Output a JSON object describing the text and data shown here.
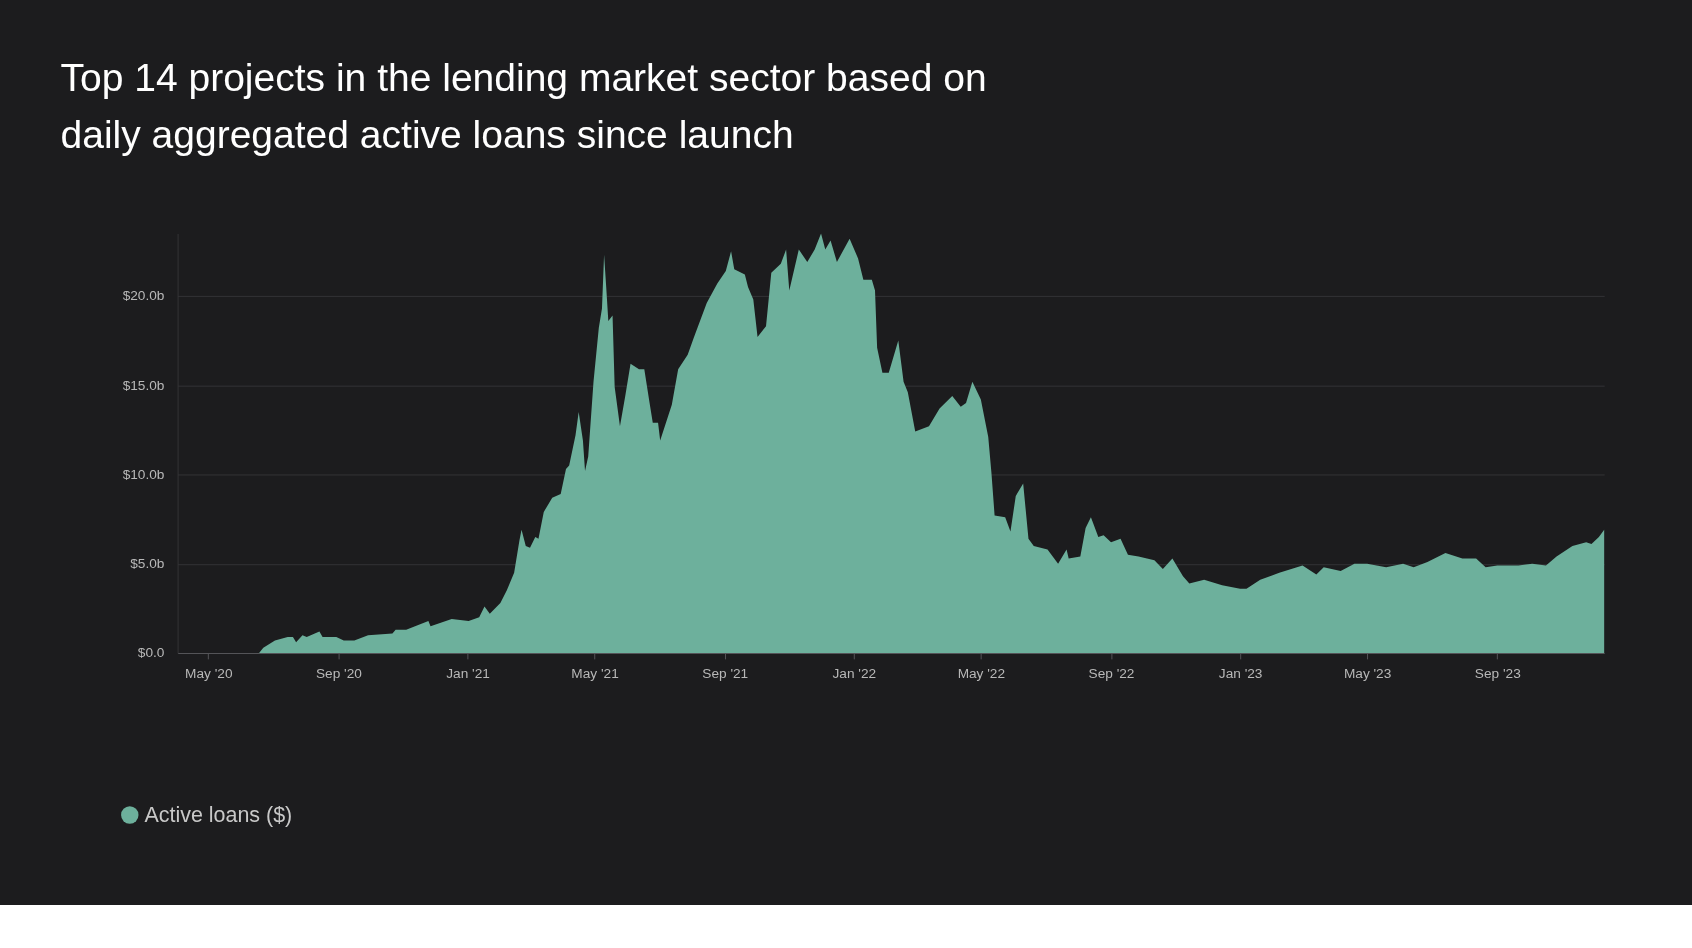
{
  "chart_data": {
    "type": "area",
    "title": "Top 14 projects in the lending market sector based on daily aggregated active loans since launch",
    "x": [
      "2020-06-18",
      "2020-06-22",
      "2020-07-03",
      "2020-07-15",
      "2020-07-20",
      "2020-07-23",
      "2020-07-29",
      "2020-08-02",
      "2020-08-14",
      "2020-08-17",
      "2020-08-30",
      "2020-09-06",
      "2020-09-16",
      "2020-09-29",
      "2020-10-22",
      "2020-10-25",
      "2020-11-04",
      "2020-11-25",
      "2020-11-27",
      "2020-12-17",
      "2021-01-02",
      "2021-01-12",
      "2021-01-17",
      "2021-01-22",
      "2021-02-01",
      "2021-02-07",
      "2021-02-14",
      "2021-02-19",
      "2021-02-21",
      "2021-02-25",
      "2021-03-01",
      "2021-03-06",
      "2021-03-09",
      "2021-03-14",
      "2021-03-22",
      "2021-03-30",
      "2021-04-04",
      "2021-04-07",
      "2021-04-13",
      "2021-04-16",
      "2021-04-20",
      "2021-04-22",
      "2021-04-25",
      "2021-04-30",
      "2021-05-05",
      "2021-05-08",
      "2021-05-10",
      "2021-05-12",
      "2021-05-14",
      "2021-05-18",
      "2021-05-20",
      "2021-05-25",
      "2021-05-30",
      "2021-06-04",
      "2021-06-12",
      "2021-06-17",
      "2021-06-22",
      "2021-06-25",
      "2021-06-30",
      "2021-07-02",
      "2021-07-13",
      "2021-07-19",
      "2021-07-28",
      "2021-08-03",
      "2021-08-15",
      "2021-08-25",
      "2021-09-02",
      "2021-09-07",
      "2021-09-10",
      "2021-09-20",
      "2021-09-23",
      "2021-09-28",
      "2021-10-02",
      "2021-10-10",
      "2021-10-15",
      "2021-10-24",
      "2021-10-29",
      "2021-11-01",
      "2021-11-10",
      "2021-11-18",
      "2021-11-25",
      "2021-12-01",
      "2021-12-05",
      "2021-12-10",
      "2021-12-16",
      "2021-12-28",
      "2022-01-05",
      "2022-01-10",
      "2022-01-18",
      "2022-01-21",
      "2022-01-23",
      "2022-01-28",
      "2022-02-03",
      "2022-02-12",
      "2022-02-17",
      "2022-02-21",
      "2022-02-28",
      "2022-03-13",
      "2022-03-23",
      "2022-04-04",
      "2022-04-12",
      "2022-04-17",
      "2022-04-23",
      "2022-05-01",
      "2022-05-08",
      "2022-05-11",
      "2022-05-14",
      "2022-05-24",
      "2022-05-29",
      "2022-06-03",
      "2022-06-10",
      "2022-06-15",
      "2022-06-20",
      "2022-07-03",
      "2022-07-13",
      "2022-07-21",
      "2022-07-23",
      "2022-08-03",
      "2022-08-08",
      "2022-08-13",
      "2022-08-20",
      "2022-08-25",
      "2022-09-01",
      "2022-09-10",
      "2022-09-17",
      "2022-09-27",
      "2022-10-12",
      "2022-10-20",
      "2022-10-29",
      "2022-11-08",
      "2022-11-14",
      "2022-11-28",
      "2022-12-15",
      "2023-01-01",
      "2023-01-07",
      "2023-01-20",
      "2023-02-07",
      "2023-03-01",
      "2023-03-14",
      "2023-03-21",
      "2023-04-06",
      "2023-04-19",
      "2023-05-01",
      "2023-05-19",
      "2023-06-04",
      "2023-06-14",
      "2023-06-27",
      "2023-07-14",
      "2023-07-30",
      "2023-08-12",
      "2023-08-21",
      "2023-09-01",
      "2023-09-21",
      "2023-10-04",
      "2023-10-17",
      "2023-10-27",
      "2023-11-06",
      "2023-11-11",
      "2023-11-24",
      "2023-11-29",
      "2023-12-06",
      "2023-12-11"
    ],
    "series": [
      {
        "name": "Active loans ($)",
        "color": "#6db09c",
        "values": [
          0,
          0.3,
          0.7,
          0.9,
          0.9,
          0.6,
          1.0,
          0.9,
          1.2,
          0.9,
          0.9,
          0.7,
          0.7,
          1.0,
          1.1,
          1.3,
          1.3,
          1.8,
          1.5,
          1.9,
          1.8,
          2.0,
          2.6,
          2.2,
          2.8,
          3.5,
          4.5,
          6.3,
          6.9,
          6.0,
          5.9,
          6.5,
          6.4,
          7.9,
          8.7,
          8.9,
          10.3,
          10.5,
          12.2,
          13.5,
          11.9,
          10.2,
          11.0,
          15.2,
          18.2,
          19.3,
          22.3,
          20.5,
          18.6,
          18.9,
          14.9,
          12.7,
          14.4,
          16.2,
          15.9,
          15.9,
          14.0,
          12.9,
          12.9,
          11.9,
          13.9,
          15.9,
          16.7,
          17.7,
          19.6,
          20.7,
          21.4,
          22.5,
          21.5,
          21.2,
          20.5,
          19.8,
          17.7,
          18.3,
          21.3,
          21.8,
          22.6,
          20.3,
          22.6,
          21.9,
          22.6,
          23.5,
          22.6,
          23.1,
          21.9,
          23.2,
          22.1,
          20.9,
          20.9,
          20.3,
          17.1,
          15.7,
          15.7,
          17.5,
          15.2,
          14.6,
          12.4,
          12.7,
          13.7,
          14.4,
          13.8,
          14.0,
          15.2,
          14.2,
          12.1,
          10.1,
          7.7,
          7.6,
          6.8,
          8.8,
          9.5,
          6.4,
          6.0,
          5.8,
          5.0,
          5.8,
          5.3,
          5.4,
          7.0,
          7.6,
          6.5,
          6.6,
          6.2,
          6.4,
          5.5,
          5.4,
          5.2,
          4.7,
          5.3,
          4.3,
          3.9,
          4.1,
          3.8,
          3.6,
          3.6,
          4.1,
          4.5,
          4.9,
          4.4,
          4.8,
          4.6,
          5.0,
          5.0,
          4.8,
          5.0,
          4.8,
          5.1,
          5.6,
          5.3,
          5.3,
          4.8,
          4.9,
          4.9,
          5.0,
          4.9,
          5.4,
          5.8,
          6.0,
          6.2,
          6.1,
          6.5,
          6.9
        ]
      }
    ],
    "xlim": [
      "2020-04-02",
      "2023-12-11"
    ],
    "xticks": [
      {
        "value": "2020-05-01",
        "label": "May '20"
      },
      {
        "value": "2020-09-01",
        "label": "Sep '20"
      },
      {
        "value": "2021-01-01",
        "label": "Jan '21"
      },
      {
        "value": "2021-05-01",
        "label": "May '21"
      },
      {
        "value": "2021-09-01",
        "label": "Sep '21"
      },
      {
        "value": "2022-01-01",
        "label": "Jan '22"
      },
      {
        "value": "2022-05-01",
        "label": "May '22"
      },
      {
        "value": "2022-09-01",
        "label": "Sep '22"
      },
      {
        "value": "2023-01-01",
        "label": "Jan '23"
      },
      {
        "value": "2023-05-01",
        "label": "May '23"
      },
      {
        "value": "2023-09-01",
        "label": "Sep '23"
      }
    ],
    "yticks": [
      {
        "value": 0,
        "label": "$0.0"
      },
      {
        "value": 5,
        "label": "$5.0b"
      },
      {
        "value": 10,
        "label": "$10.0b"
      },
      {
        "value": 15,
        "label": "$15.0b"
      },
      {
        "value": 20,
        "label": "$20.0b"
      }
    ],
    "ylim": [
      0,
      23.5
    ],
    "grid": "y",
    "legend": "bottom left"
  }
}
